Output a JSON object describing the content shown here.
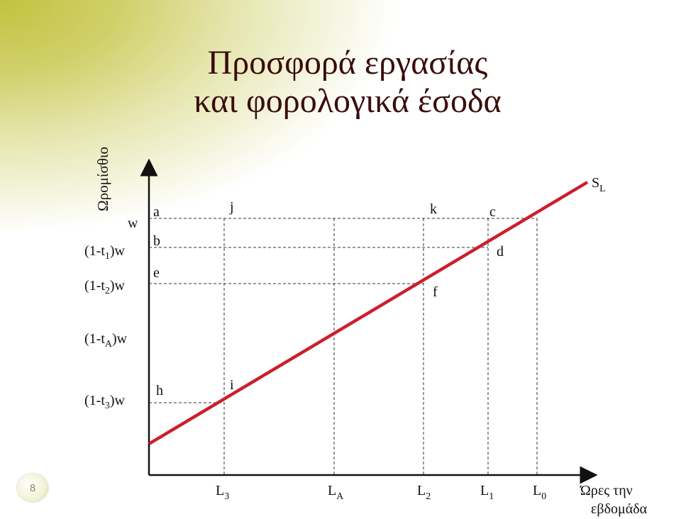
{
  "title_line1": "Προσφορά εργασίας",
  "title_line2": "και φορολογικά έσοδα",
  "page_number": "8",
  "y_axis_title": "Ωρομίσθιο",
  "x_axis_title_line1": "Ώρες την",
  "x_axis_title_line2": "εβδομάδα",
  "curve_label": {
    "main": "S",
    "sub": "L"
  },
  "wage_labels": [
    {
      "id": "w",
      "pre": "w",
      "sub": "",
      "post": ""
    },
    {
      "id": "t1",
      "pre": "(1-t",
      "sub": "1",
      "post": ")w"
    },
    {
      "id": "t2",
      "pre": "(1-t",
      "sub": "2",
      "post": ")w"
    },
    {
      "id": "tA",
      "pre": "(1-t",
      "sub": "A",
      "post": ")w"
    },
    {
      "id": "t3",
      "pre": "(1-t",
      "sub": "3",
      "post": ")w"
    }
  ],
  "hours_labels": [
    {
      "id": "L3",
      "main": "L",
      "sub": "3"
    },
    {
      "id": "LA",
      "main": "L",
      "sub": "A"
    },
    {
      "id": "L2",
      "main": "L",
      "sub": "2"
    },
    {
      "id": "L1",
      "main": "L",
      "sub": "1"
    },
    {
      "id": "L0",
      "main": "L",
      "sub": "0"
    }
  ],
  "point_labels": [
    "a",
    "b",
    "e",
    "j",
    "k",
    "c",
    "d",
    "f",
    "h",
    "i"
  ],
  "colors": {
    "supply_curve": "#cc1f2a",
    "title": "#3a0d0d",
    "background_tint": "#c2c23e"
  }
}
